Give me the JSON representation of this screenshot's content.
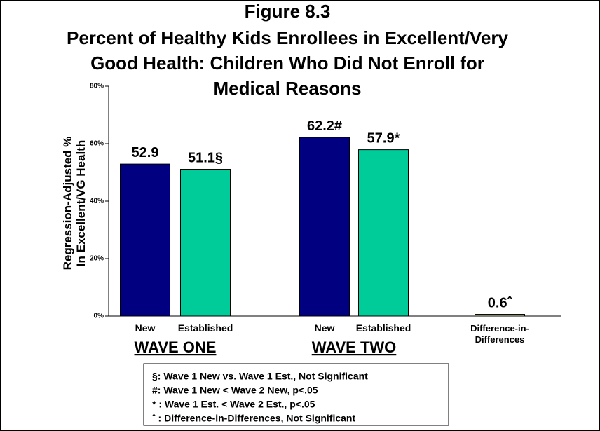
{
  "chart_data": {
    "type": "bar",
    "title_lines": [
      "Figure 8.3",
      "Percent of Healthy Kids Enrollees in Excellent/Very",
      "Good Health: Children Who Did Not Enroll for",
      "Medical Reasons"
    ],
    "y_label_lines": [
      "Regression-Adjusted %",
      "In Excellent/VG Health"
    ],
    "categories": [
      "New",
      "Established",
      "New",
      "Established",
      "Difference-in-Differences"
    ],
    "values": [
      52.9,
      51.1,
      62.2,
      57.9,
      0.6
    ],
    "value_labels": [
      "52.9",
      "51.1§",
      "62.2#",
      "57.9*",
      "0.6ˆ"
    ],
    "colors": [
      "#000080",
      "#00cc99",
      "#000080",
      "#00cc99",
      "#ffffcc"
    ],
    "group_labels": [
      "WAVE ONE",
      "WAVE TWO"
    ],
    "ylim": [
      0,
      80
    ],
    "yticks": [
      {
        "value": 0,
        "label": "0%"
      },
      {
        "value": 20,
        "label": "20%"
      },
      {
        "value": 40,
        "label": "40%"
      },
      {
        "value": 60,
        "label": "60%"
      },
      {
        "value": 80,
        "label": "80%"
      }
    ],
    "notes": [
      "§: Wave 1 New vs. Wave 1 Est., Not Significant",
      "#: Wave 1 New < Wave 2 New, p<.05",
      "* : Wave 1 Est. < Wave 2 Est., p<.05",
      "ˆ : Difference-in-Differences, Not Significant"
    ]
  }
}
